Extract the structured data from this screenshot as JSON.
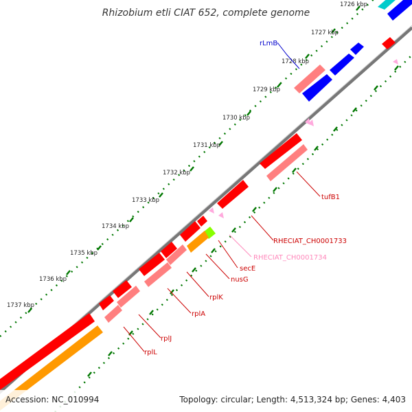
{
  "title": "Rhizobium etli CIAT 652, complete genome",
  "accession_text": "Accession: NC_010994",
  "info_text": "Topology: circular; Length: 4,513,324 bp; Genes: 4,403",
  "tick_labels": [
    "1726 kbp",
    "1727 kbp",
    "1728 kbp",
    "1729 kbp",
    "1730 kbp",
    "1731 kbp",
    "1732 kbp",
    "1733 kbp",
    "1734 kbp",
    "1735 kbp",
    "1736 kbp",
    "1737 kbp"
  ],
  "gene_labels": [
    {
      "text": "rLmB",
      "color": "#0000cc"
    },
    {
      "text": "tufB1",
      "color": "#cc0000"
    },
    {
      "text": "RHECIAT_CH0001733",
      "color": "#cc0000"
    },
    {
      "text": "RHECIAT_CH0001734",
      "color": "#ff88bb"
    },
    {
      "text": "secE",
      "color": "#cc0000"
    },
    {
      "text": "nusG",
      "color": "#cc0000"
    },
    {
      "text": "rplK",
      "color": "#cc0000"
    },
    {
      "text": "rplA",
      "color": "#cc0000"
    },
    {
      "text": "rplJ",
      "color": "#cc0000"
    },
    {
      "text": "rplL",
      "color": "#cc0000"
    }
  ],
  "colors": {
    "cds_forward": "#ff0000",
    "cds_reverse": "#ff7f7f",
    "blue_feature": "#0000ff",
    "rrna": "#ff9900",
    "trna": "#ffaadd",
    "cyan_feature": "#00cccc",
    "green_feature": "#88ff00",
    "backbone": "#888888",
    "tick_marks": "#007700"
  }
}
